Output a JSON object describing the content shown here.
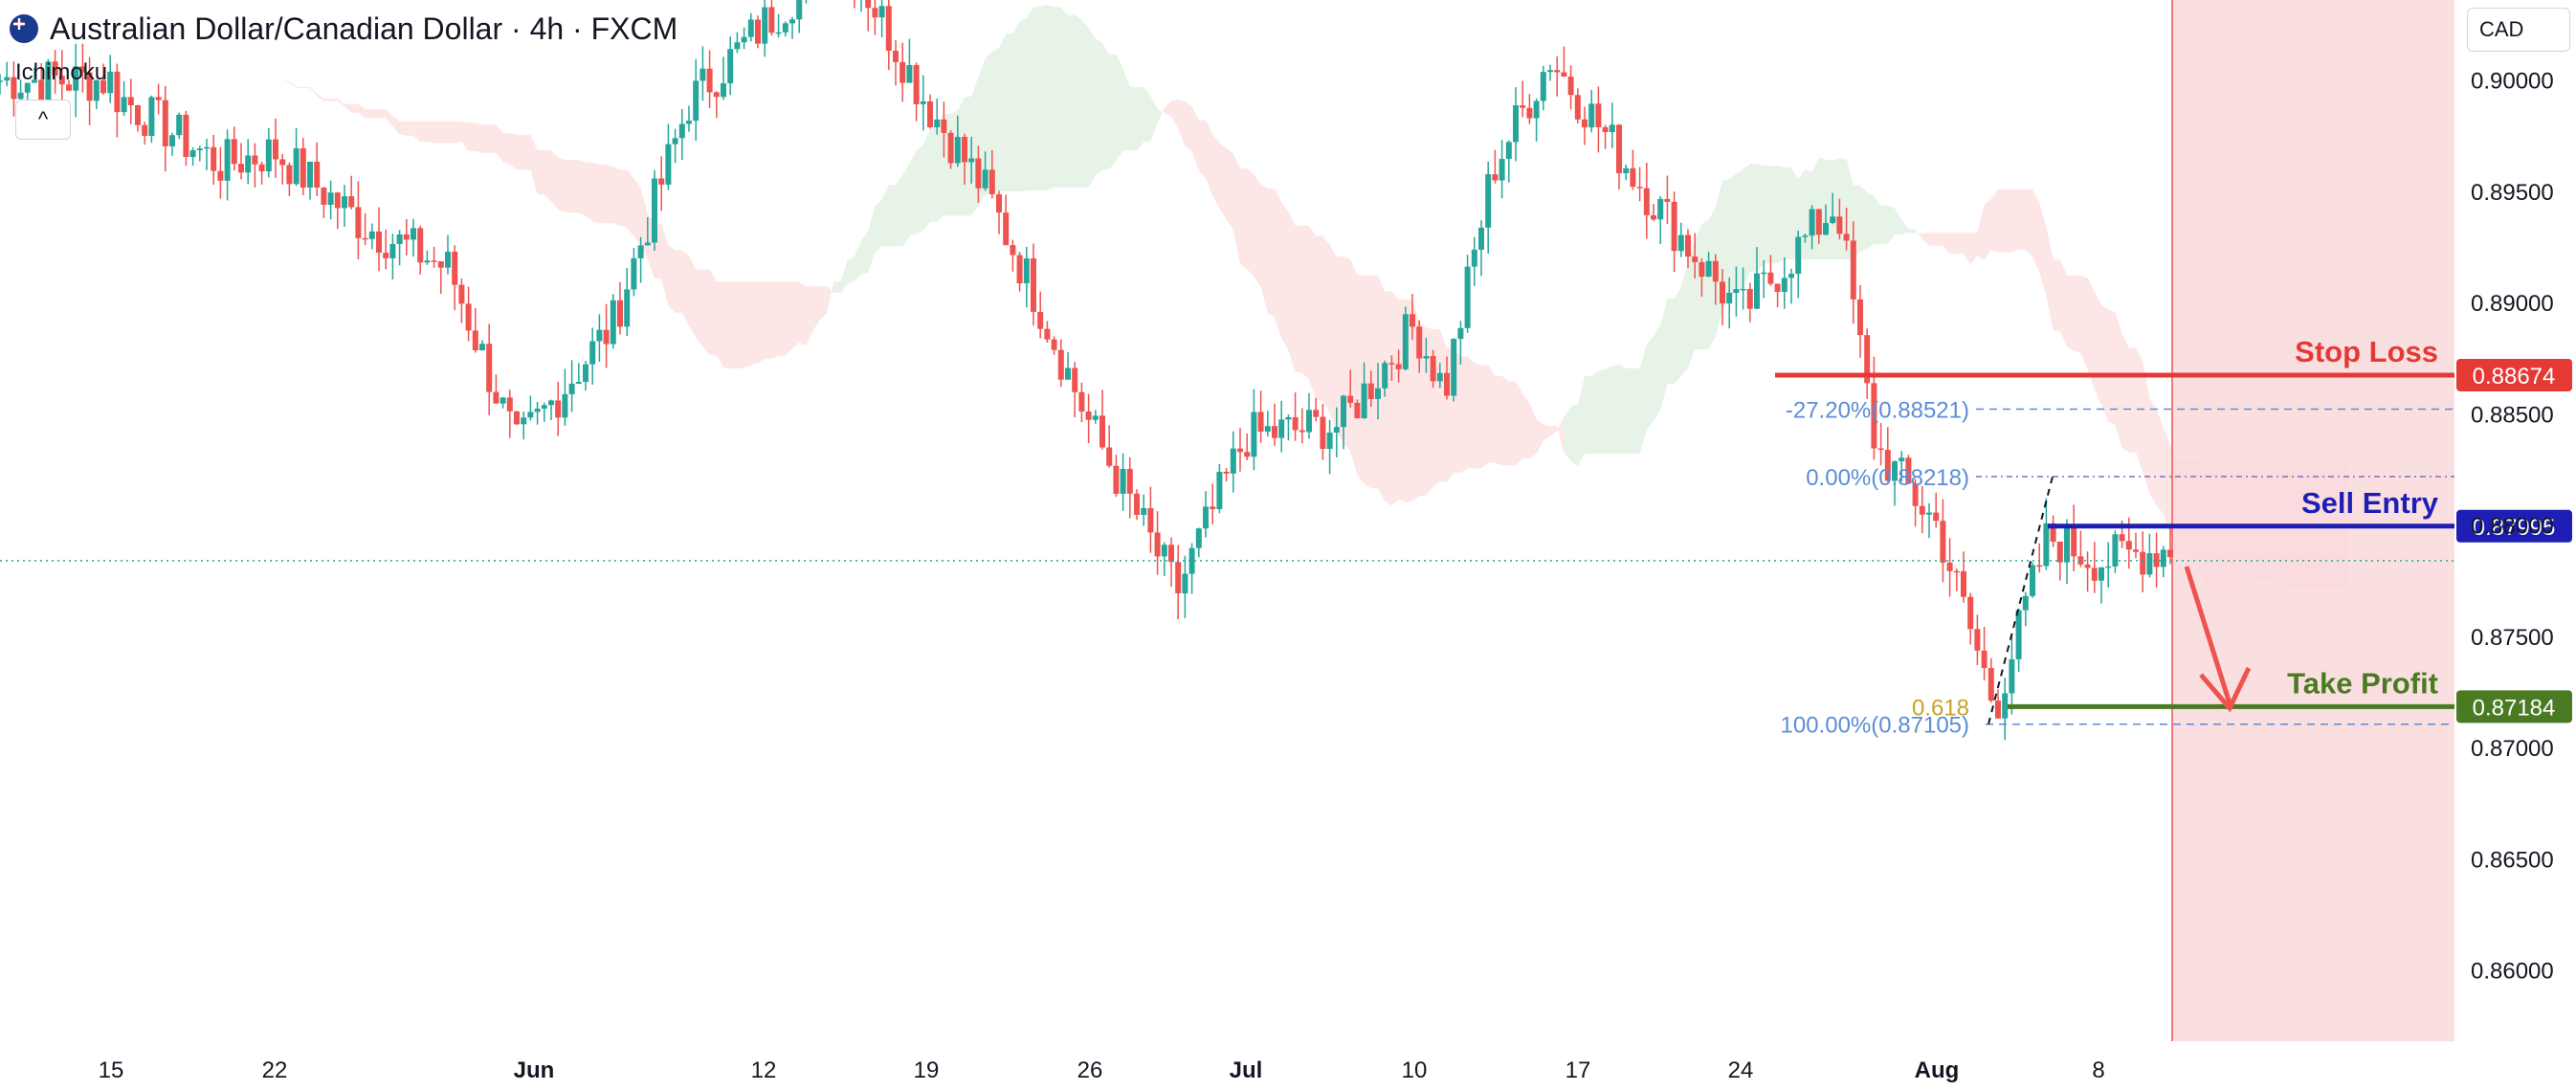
{
  "header": {
    "symbol_title": "Australian Dollar/Canadian Dollar · 4h · FXCM",
    "indicator": "Ichimoku",
    "collapse_glyph": "^",
    "currency": "CAD"
  },
  "colors": {
    "up": "#26a69a",
    "down": "#ef5350",
    "cloud_bull": "#e6f2e6",
    "cloud_bear": "#fde3e3",
    "stop_loss": "#e53935",
    "sell_entry": "#1e1eb4",
    "take_profit": "#4a7a22",
    "fib_blue": "#5b8dd6",
    "fib_gold": "#c9a227",
    "zone": "#f9d9dc"
  },
  "chart_data": {
    "type": "candlestick",
    "symbol": "AUDCAD",
    "timeframe": "4h",
    "y_axis": {
      "range": [
        0.8568,
        0.9036
      ],
      "ticks": [
        "0.90000",
        "0.89500",
        "0.89000",
        "0.88500",
        "0.88000",
        "0.87500",
        "0.87000",
        "0.86500",
        "0.86000"
      ]
    },
    "x_axis": {
      "ticks": [
        "15",
        "22",
        "Jun",
        "12",
        "19",
        "26",
        "Jul",
        "10",
        "17",
        "24",
        "Aug",
        "8"
      ]
    },
    "price_path": [
      [
        "15",
        0.8995
      ],
      [
        "18",
        0.8962
      ],
      [
        "22",
        0.8968
      ],
      [
        "25",
        0.8935
      ],
      [
        "29",
        0.8915
      ],
      [
        "Jun",
        0.8835
      ],
      [
        "5",
        0.889
      ],
      [
        "9",
        0.899
      ],
      [
        "12",
        0.9025
      ],
      [
        "15",
        0.906
      ],
      [
        "19",
        0.899
      ],
      [
        "22",
        0.895
      ],
      [
        "24",
        0.8905
      ],
      [
        "26",
        0.8845
      ],
      [
        "29",
        0.877
      ],
      [
        "Jul",
        0.884
      ],
      [
        "6",
        0.8845
      ],
      [
        "10",
        0.889
      ],
      [
        "12",
        0.886
      ],
      [
        "14",
        0.896
      ],
      [
        "17",
        0.901
      ],
      [
        "20",
        0.895
      ],
      [
        "24",
        0.8895
      ],
      [
        "26",
        0.892
      ],
      [
        "28",
        0.8945
      ],
      [
        "30",
        0.8835
      ],
      [
        "Aug",
        0.88
      ],
      [
        "3",
        0.8718
      ],
      [
        "5",
        0.8795
      ],
      [
        "8",
        0.8784
      ],
      [
        "10",
        0.879
      ]
    ],
    "levels": [
      {
        "name": "Stop Loss",
        "value": 0.88674,
        "label": "0.88674"
      },
      {
        "name": "Sell Entry",
        "value": 0.87995,
        "label": "0.87995"
      },
      {
        "name": "Take Profit",
        "value": 0.87184,
        "label": "0.87184"
      }
    ],
    "fibonacci": [
      {
        "label": "-27.20%(0.88521)",
        "value": 0.88521
      },
      {
        "label": "0.00%(0.88218)",
        "value": 0.88218
      },
      {
        "label": "100.00%(0.87105)",
        "value": 0.87105
      },
      {
        "label": "0.618",
        "value": 0.87184
      }
    ],
    "current_price": 0.8784
  }
}
